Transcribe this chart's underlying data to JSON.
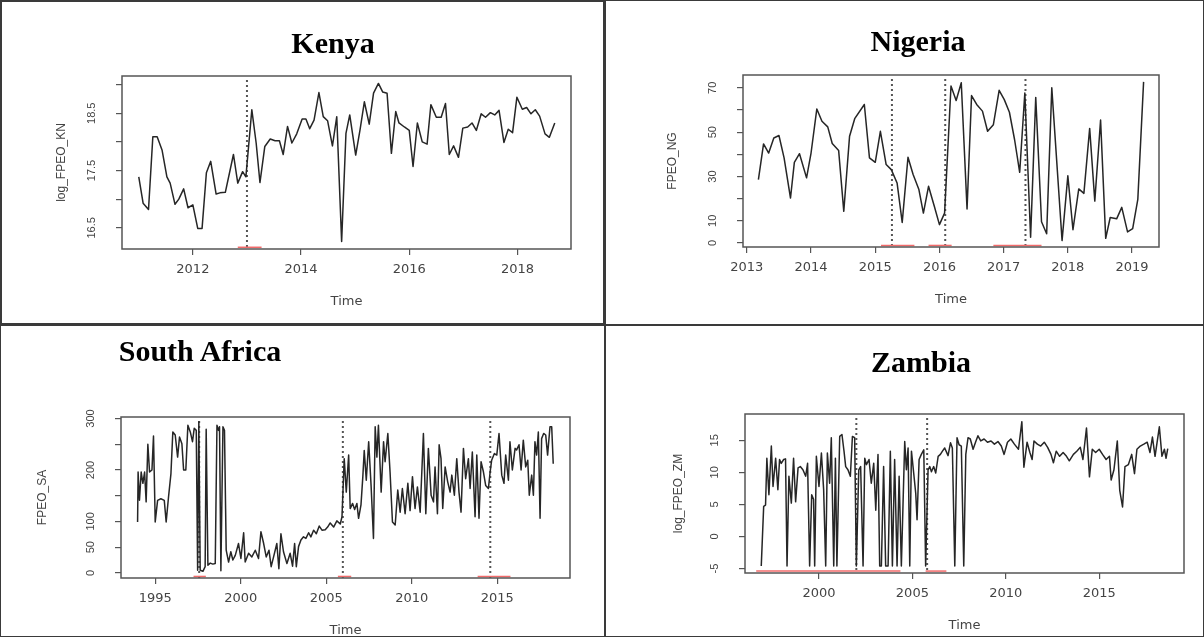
{
  "chart_data": [
    {
      "type": "line",
      "title": "Kenya",
      "xlabel": "Time",
      "ylabel": "log_FPEO_KN",
      "xlim": [
        2010.69,
        2018.99
      ],
      "ylim": [
        16.13,
        19.15
      ],
      "xticks": [
        2012,
        2014,
        2016,
        2018
      ],
      "yticks": [
        16.5,
        {
          "value": 17,
          "label": null
        },
        17.5,
        {
          "value": 18,
          "label": null
        },
        18.5,
        {
          "value": 19,
          "label": null
        }
      ],
      "x": [
        2011.0,
        2011.08,
        2011.18,
        2011.26,
        2011.34,
        2011.43,
        2011.52,
        2011.58,
        2011.67,
        2011.74,
        2011.83,
        2011.91,
        2012.0,
        2012.09,
        2012.17,
        2012.25,
        2012.33,
        2012.43,
        2012.5,
        2012.6,
        2012.75,
        2012.83,
        2012.92,
        2012.98,
        2013.09,
        2013.17,
        2013.24,
        2013.33,
        2013.43,
        2013.52,
        2013.6,
        2013.67,
        2013.75,
        2013.83,
        2013.92,
        2014.02,
        2014.09,
        2014.16,
        2014.24,
        2014.33,
        2014.41,
        2014.49,
        2014.58,
        2014.66,
        2014.75,
        2014.83,
        2014.9,
        2015.01,
        2015.09,
        2015.17,
        2015.26,
        2015.34,
        2015.43,
        2015.51,
        2015.59,
        2015.67,
        2015.75,
        2015.81,
        2015.91,
        2016.0,
        2016.07,
        2016.15,
        2016.24,
        2016.33,
        2016.4,
        2016.5,
        2016.59,
        2016.67,
        2016.74,
        2016.82,
        2016.91,
        2016.99,
        2017.08,
        2017.16,
        2017.24,
        2017.33,
        2017.41,
        2017.5,
        2017.58,
        2017.66,
        2017.75,
        2017.83,
        2017.91,
        2017.99,
        2018.09,
        2018.17,
        2018.25,
        2018.33,
        2018.41,
        2018.51,
        2018.59,
        2018.69
      ],
      "series": [
        {
          "color": "#262626",
          "values": [
            17.39,
            16.93,
            16.82,
            18.09,
            18.09,
            17.86,
            17.39,
            17.28,
            16.91,
            17.0,
            17.18,
            16.85,
            16.9,
            16.49,
            16.49,
            17.46,
            17.66,
            17.09,
            17.11,
            17.12,
            17.78,
            17.28,
            17.48,
            17.39,
            18.56,
            17.98,
            17.29,
            17.92,
            18.05,
            18.02,
            18.02,
            17.78,
            18.27,
            17.98,
            18.14,
            18.4,
            18.4,
            18.23,
            18.38,
            18.86,
            18.44,
            18.37,
            17.93,
            18.44,
            16.26,
            18.15,
            18.47,
            17.77,
            18.21,
            18.7,
            18.31,
            18.85,
            19.02,
            18.87,
            18.85,
            17.8,
            18.53,
            18.33,
            18.26,
            18.2,
            17.57,
            18.33,
            18.0,
            17.96,
            18.65,
            18.43,
            18.43,
            18.67,
            17.78,
            17.93,
            17.73,
            18.24,
            18.26,
            18.33,
            18.2,
            18.49,
            18.43,
            18.51,
            18.47,
            18.55,
            17.99,
            18.22,
            18.16,
            18.78,
            18.57,
            18.6,
            18.49,
            18.56,
            18.45,
            18.14,
            18.08,
            18.33
          ]
        },
        {
          "type": "line",
          "color": "#f26b6b",
          "x": [
            2012.83,
            2013.27
          ],
          "values": [
            16.16,
            16.16
          ]
        }
      ],
      "ref_lines": [
        {
          "axis": "x",
          "value": 2013.0,
          "color": "#555555",
          "line_style": "dotted"
        }
      ]
    },
    {
      "type": "line",
      "title": "Nigeria",
      "xlabel": "Time",
      "ylabel": "FPEO_NG",
      "xlim": [
        2012.94,
        2019.42
      ],
      "ylim": [
        -1.8,
        75.8
      ],
      "xticks": [
        2013,
        2014,
        2015,
        2016,
        2017,
        2018,
        2019
      ],
      "yticks": [
        0,
        10,
        {
          "value": 20,
          "label": null
        },
        30,
        {
          "value": 40,
          "label": null
        },
        50,
        {
          "value": 60,
          "label": null
        },
        70
      ],
      "x": [
        2013.18,
        2013.26,
        2013.34,
        2013.42,
        2013.5,
        2013.58,
        2013.68,
        2013.74,
        2013.82,
        2013.93,
        2014.0,
        2014.09,
        2014.17,
        2014.26,
        2014.33,
        2014.43,
        2014.51,
        2014.6,
        2014.68,
        2014.83,
        2014.91,
        2015.0,
        2015.08,
        2015.17,
        2015.25,
        2015.34,
        2015.42,
        2015.51,
        2015.59,
        2015.68,
        2015.75,
        2015.83,
        2015.92,
        2016.0,
        2016.08,
        2016.18,
        2016.26,
        2016.34,
        2016.43,
        2016.5,
        2016.58,
        2016.67,
        2016.75,
        2016.84,
        2016.93,
        2017.01,
        2017.09,
        2017.17,
        2017.25,
        2017.33,
        2017.42,
        2017.5,
        2017.59,
        2017.67,
        2017.75,
        2017.91,
        2018.0,
        2018.08,
        2018.17,
        2018.25,
        2018.34,
        2018.42,
        2018.51,
        2018.59,
        2018.66,
        2018.76,
        2018.84,
        2018.93,
        2019.01,
        2019.09,
        2019.18
      ],
      "series": [
        {
          "color": "#262626",
          "values": [
            28.6,
            44.7,
            40.6,
            47.4,
            48.5,
            38.4,
            20.3,
            36.4,
            40.3,
            29.4,
            40.6,
            60.5,
            54.9,
            52.4,
            44.9,
            41.7,
            14.3,
            48.2,
            56.1,
            62.5,
            38.4,
            36.4,
            50.4,
            35.4,
            33.1,
            27.1,
            9.3,
            38.7,
            30.9,
            24.1,
            13.5,
            25.6,
            16.6,
            8.3,
            13.5,
            70.8,
            64.3,
            72.3,
            15.4,
            66.5,
            62.5,
            59.5,
            50.4,
            53.4,
            68.9,
            64.7,
            59.0,
            46.7,
            31.9,
            67.7,
            2.6,
            65.7,
            9.6,
            4.2,
            70.0,
            1.1,
            30.3,
            6.0,
            24.4,
            22.4,
            51.7,
            18.9,
            55.5,
            2.1,
            11.5,
            10.9,
            16.1,
            5.0,
            6.5,
            19.7,
            72.7
          ]
        },
        {
          "type": "line",
          "color": "#f26b6b",
          "x": [
            2015.09,
            2015.61
          ],
          "values": [
            -1.1,
            -1.1
          ]
        },
        {
          "type": "line",
          "color": "#f26b6b",
          "x": [
            2015.83,
            2016.19
          ],
          "values": [
            -1.1,
            -1.1
          ]
        },
        {
          "type": "line",
          "color": "#f26b6b",
          "x": [
            2016.84,
            2017.59
          ],
          "values": [
            -1.1,
            -1.1
          ]
        }
      ],
      "ref_lines": [
        {
          "axis": "x",
          "value": 2015.26,
          "color": "#555555",
          "line_style": "dotted"
        },
        {
          "axis": "x",
          "value": 2016.09,
          "color": "#555555",
          "line_style": "dotted"
        },
        {
          "axis": "x",
          "value": 2017.34,
          "color": "#555555",
          "line_style": "dotted"
        }
      ]
    },
    {
      "type": "line",
      "title": "South Africa",
      "xlabel": "Time",
      "ylabel": "FPEO_SA",
      "xlim": [
        1993.0,
        2019.25
      ],
      "ylim": [
        -10,
        303
      ],
      "xticks": [
        1995,
        2000,
        2005,
        2010,
        2015
      ],
      "yticks": [
        0,
        50,
        100,
        {
          "value": 150,
          "label": null
        },
        200,
        {
          "value": 250,
          "label": null
        },
        300
      ],
      "x": [
        1993.97,
        1994.0,
        1994.08,
        1994.18,
        1994.28,
        1994.38,
        1994.47,
        1994.57,
        1994.67,
        1994.81,
        1994.9,
        1995.0,
        1995.14,
        1995.33,
        1995.53,
        1995.64,
        1995.78,
        1995.92,
        1996.03,
        1996.17,
        1996.31,
        1996.42,
        1996.56,
        1996.66,
        1996.79,
        1996.91,
        1997.05,
        1997.18,
        1997.28,
        1997.4,
        1997.48,
        1997.55,
        1997.63,
        1997.79,
        1997.92,
        1997.98,
        1998.08,
        1998.22,
        1998.37,
        1998.51,
        1998.61,
        1998.7,
        1998.76,
        1998.84,
        1998.96,
        1999.05,
        1999.15,
        1999.29,
        1999.42,
        1999.54,
        1999.68,
        1999.87,
        2000.01,
        2000.17,
        2000.26,
        2000.46,
        2000.65,
        2000.85,
        2001.04,
        2001.18,
        2001.34,
        2001.49,
        2001.65,
        2001.78,
        2001.92,
        2002.11,
        2002.23,
        2002.35,
        2002.5,
        2002.7,
        2002.89,
        2003.03,
        2003.15,
        2003.25,
        2003.38,
        2003.52,
        2003.67,
        2003.81,
        2003.97,
        2004.1,
        2004.26,
        2004.42,
        2004.59,
        2004.75,
        2004.94,
        2005.08,
        2005.23,
        2005.43,
        2005.62,
        2005.82,
        2005.92,
        2006.05,
        2006.17,
        2006.31,
        2006.4,
        2006.54,
        2006.66,
        2006.79,
        2006.89,
        2007.03,
        2007.14,
        2007.22,
        2007.34,
        2007.48,
        2007.62,
        2007.76,
        2007.86,
        2007.96,
        2008.05,
        2008.21,
        2008.35,
        2008.44,
        2008.6,
        2008.73,
        2008.87,
        2009.03,
        2009.18,
        2009.32,
        2009.45,
        2009.61,
        2009.77,
        2009.9,
        2010.04,
        2010.19,
        2010.33,
        2010.49,
        2010.68,
        2010.82,
        2010.97,
        2011.13,
        2011.27,
        2011.36,
        2011.5,
        2011.6,
        2011.71,
        2011.81,
        2011.95,
        2012.1,
        2012.24,
        2012.34,
        2012.49,
        2012.63,
        2012.76,
        2012.88,
        2013.02,
        2013.15,
        2013.31,
        2013.41,
        2013.54,
        2013.7,
        2013.8,
        2013.93,
        2014.05,
        2014.19,
        2014.32,
        2014.48,
        2014.58,
        2014.67,
        2014.83,
        2014.97,
        2015.1,
        2015.26,
        2015.39,
        2015.49,
        2015.65,
        2015.74,
        2015.88,
        2016.04,
        2016.13,
        2016.27,
        2016.39,
        2016.52,
        2016.66,
        2016.78,
        2016.87,
        2017.01,
        2017.11,
        2017.2,
        2017.3,
        2017.4,
        2017.5,
        2017.59,
        2017.71,
        2017.83,
        2017.94,
        2018.08,
        2018.18,
        2018.27
      ],
      "series": [
        {
          "color": "#262626",
          "values": [
            99,
            196,
            141,
            196,
            174,
            196,
            138,
            250,
            196,
            200,
            266,
            99,
            141,
            144,
            141,
            99,
            148,
            193,
            274,
            268,
            225,
            264,
            251,
            200,
            200,
            287,
            274,
            255,
            281,
            277,
            5,
            294,
            5,
            3,
            12,
            279,
            15,
            19,
            17,
            18,
            287,
            277,
            284,
            4,
            284,
            277,
            44,
            21,
            41,
            25,
            34,
            57,
            28,
            78,
            21,
            38,
            31,
            44,
            28,
            80,
            57,
            31,
            44,
            12,
            31,
            57,
            8,
            76,
            41,
            18,
            38,
            13,
            57,
            12,
            51,
            64,
            70,
            67,
            78,
            70,
            83,
            76,
            91,
            83,
            84,
            89,
            97,
            89,
            101,
            95,
            109,
            222,
            157,
            229,
            125,
            135,
            123,
            135,
            106,
            132,
            188,
            238,
            180,
            255,
            170,
            67,
            284,
            225,
            287,
            157,
            255,
            216,
            271,
            196,
            99,
            93,
            161,
            118,
            164,
            115,
            174,
            121,
            187,
            125,
            167,
            118,
            271,
            115,
            242,
            151,
            138,
            206,
            115,
            249,
            222,
            125,
            206,
            177,
            157,
            190,
            151,
            222,
            157,
            118,
            242,
            183,
            222,
            164,
            235,
            109,
            229,
            106,
            216,
            196,
            170,
            164,
            196,
            219,
            232,
            229,
            271,
            190,
            174,
            229,
            180,
            255,
            200,
            242,
            239,
            249,
            200,
            258,
            206,
            219,
            151,
            190,
            151,
            255,
            229,
            274,
            106,
            261,
            271,
            268,
            229,
            284,
            284,
            212
          ]
        },
        {
          "type": "line",
          "color": "#f26b6b",
          "x": [
            1997.24,
            1997.96
          ],
          "values": [
            -7,
            -7
          ]
        },
        {
          "type": "line",
          "color": "#f26b6b",
          "x": [
            2005.68,
            2006.46
          ],
          "values": [
            -7,
            -7
          ]
        },
        {
          "type": "line",
          "color": "#f26b6b",
          "x": [
            2013.85,
            2015.77
          ],
          "values": [
            -7,
            -7
          ]
        }
      ],
      "ref_lines": [
        {
          "axis": "x",
          "value": 1997.57,
          "color": "#555555",
          "line_style": "dotted"
        },
        {
          "axis": "x",
          "value": 2005.97,
          "color": "#555555",
          "line_style": "dotted"
        },
        {
          "axis": "x",
          "value": 2014.59,
          "color": "#555555",
          "line_style": "dotted"
        }
      ]
    },
    {
      "type": "line",
      "title": "Zambia",
      "xlabel": "Time",
      "ylabel": "log_FPEO_ZM",
      "xlim": [
        1996.04,
        2019.54
      ],
      "ylim": [
        -5.7,
        19.1
      ],
      "xticks": [
        2000,
        2005,
        2010,
        2015
      ],
      "yticks": [
        -5,
        0,
        5,
        10,
        15
      ],
      "x": [
        1996.91,
        1997.04,
        1997.14,
        1997.21,
        1997.32,
        1997.45,
        1997.54,
        1997.68,
        1997.8,
        1997.89,
        1997.98,
        1998.11,
        1998.21,
        1998.29,
        1998.39,
        1998.52,
        1998.64,
        1998.75,
        1998.88,
        1999.0,
        1999.14,
        1999.29,
        1999.39,
        1999.5,
        1999.61,
        1999.71,
        1999.77,
        1999.86,
        2000.0,
        2000.13,
        2000.25,
        2000.36,
        2000.45,
        2000.57,
        2000.66,
        2000.79,
        2000.88,
        2000.96,
        2001.11,
        2001.23,
        2001.34,
        2001.43,
        2001.55,
        2001.68,
        2001.79,
        2001.91,
        2002.0,
        2002.13,
        2002.23,
        2002.36,
        2002.45,
        2002.54,
        2002.68,
        2002.8,
        2002.93,
        2003.04,
        2003.16,
        2003.25,
        2003.34,
        2003.46,
        2003.57,
        2003.7,
        2003.82,
        2003.93,
        2004.05,
        2004.18,
        2004.29,
        2004.41,
        2004.59,
        2004.68,
        2004.77,
        2004.86,
        2004.95,
        2005.07,
        2005.18,
        2005.25,
        2005.36,
        2005.48,
        2005.61,
        2005.71,
        2005.84,
        2005.93,
        2006.02,
        2006.14,
        2006.25,
        2006.38,
        2006.5,
        2006.61,
        2006.73,
        2006.91,
        2007.04,
        2007.14,
        2007.27,
        2007.39,
        2007.5,
        2007.62,
        2007.75,
        2007.86,
        2007.98,
        2008.1,
        2008.25,
        2008.38,
        2008.51,
        2008.66,
        2008.84,
        2009.02,
        2009.21,
        2009.39,
        2009.58,
        2009.76,
        2009.91,
        2010.09,
        2010.27,
        2010.46,
        2010.68,
        2010.86,
        2010.97,
        2011.14,
        2011.29,
        2011.41,
        2011.51,
        2011.69,
        2011.87,
        2012.06,
        2012.24,
        2012.42,
        2012.55,
        2012.7,
        2012.88,
        2013.07,
        2013.25,
        2013.4,
        2013.62,
        2013.8,
        2013.99,
        2014.13,
        2014.32,
        2014.48,
        2014.63,
        2014.81,
        2015.0,
        2015.18,
        2015.37,
        2015.55,
        2015.64,
        2015.79,
        2015.97,
        2016.1,
        2016.25,
        2016.38,
        2016.56,
        2016.74,
        2016.89,
        2017.02,
        2017.2,
        2017.39,
        2017.57,
        2017.72,
        2017.85,
        2017.99,
        2018.22,
        2018.36,
        2018.49,
        2018.58,
        2018.67
      ],
      "series": [
        {
          "color": "#262626",
          "values": [
            -4.6,
            4.7,
            4.9,
            12.2,
            6.5,
            14.1,
            7.8,
            12.2,
            7.3,
            12.0,
            11.4,
            12.0,
            12.1,
            -4.6,
            9.4,
            5.2,
            12.2,
            5.4,
            10.7,
            10.9,
            10.4,
            9.4,
            11.4,
            -4.6,
            6.5,
            5.8,
            -4.6,
            12.5,
            7.8,
            13.0,
            7.3,
            -4.6,
            13.0,
            8.3,
            15.4,
            -4.6,
            12.2,
            -4.6,
            15.6,
            15.9,
            13.3,
            10.9,
            10.4,
            9.4,
            15.6,
            15.4,
            -4.6,
            10.4,
            10.9,
            -4.6,
            12.2,
            11.2,
            12.0,
            8.3,
            11.4,
            4.1,
            12.8,
            -4.6,
            -4.6,
            10.9,
            -4.6,
            -4.6,
            13.3,
            -4.6,
            12.0,
            -4.6,
            9.4,
            -4.6,
            14.8,
            10.4,
            13.8,
            -4.6,
            13.3,
            9.9,
            6.7,
            2.6,
            12.0,
            12.8,
            13.5,
            -4.6,
            10.4,
            10.9,
            10.1,
            10.9,
            9.9,
            12.5,
            12.8,
            13.3,
            13.8,
            12.6,
            14.6,
            13.8,
            -4.6,
            15.4,
            14.3,
            14.1,
            -4.6,
            12.8,
            15.4,
            15.2,
            13.6,
            14.7,
            15.7,
            14.9,
            15.2,
            14.7,
            14.9,
            14.4,
            14.8,
            14.1,
            12.8,
            14.7,
            15.2,
            14.4,
            13.6,
            17.9,
            10.8,
            14.7,
            13.1,
            12.0,
            14.9,
            14.4,
            14.1,
            14.7,
            13.9,
            12.8,
            11.5,
            13.3,
            12.5,
            13.1,
            12.5,
            11.8,
            12.8,
            13.3,
            13.9,
            12.0,
            16.9,
            9.3,
            13.6,
            13.1,
            13.6,
            12.8,
            12.0,
            12.5,
            8.8,
            10.4,
            14.9,
            7.2,
            4.6,
            10.9,
            11.2,
            12.8,
            9.8,
            13.6,
            14.1,
            14.4,
            14.7,
            13.1,
            15.5,
            12.5,
            17.1,
            12.5,
            13.6,
            12.2,
            13.7
          ]
        },
        {
          "type": "line",
          "color": "#f26b6b",
          "x": [
            1996.64,
            2004.36
          ],
          "values": [
            -5.4,
            -5.4
          ]
        },
        {
          "type": "line",
          "color": "#f26b6b",
          "x": [
            2005.71,
            2006.82
          ],
          "values": [
            -5.4,
            -5.4
          ]
        }
      ],
      "ref_lines": [
        {
          "axis": "x",
          "value": 2002.0,
          "color": "#555555",
          "line_style": "dotted"
        },
        {
          "axis": "x",
          "value": 2005.79,
          "color": "#555555",
          "line_style": "dotted"
        }
      ]
    }
  ]
}
